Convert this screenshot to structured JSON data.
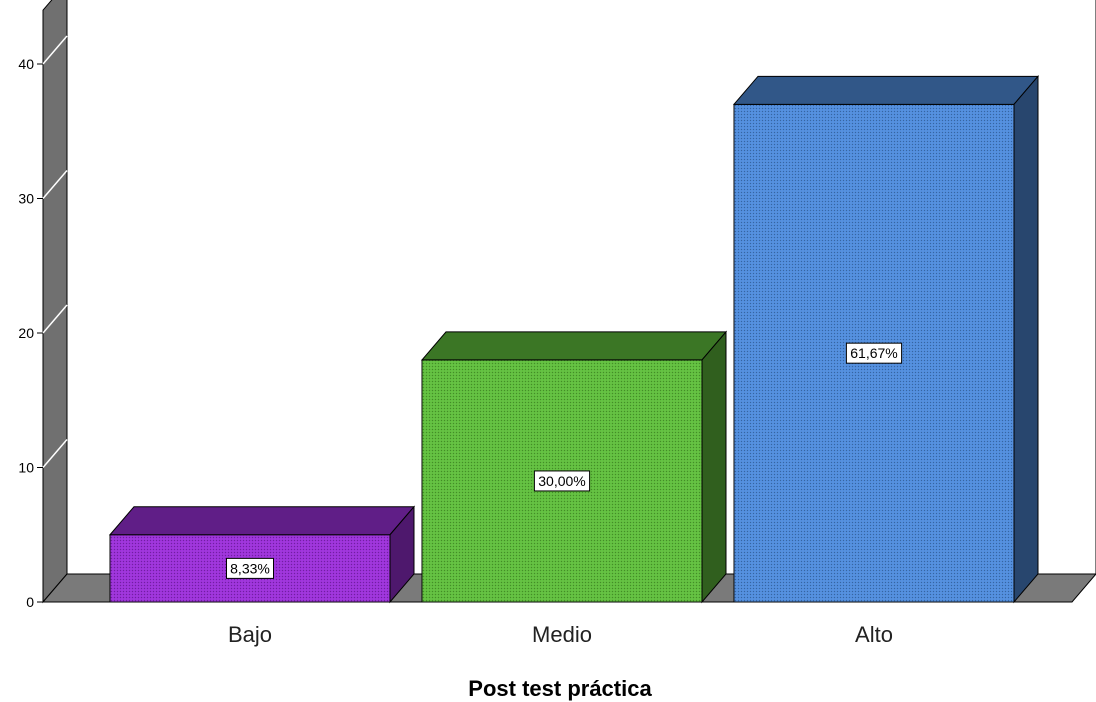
{
  "chart_data": {
    "type": "bar",
    "categories": [
      "Bajo",
      "Medio",
      "Alto"
    ],
    "values": [
      5,
      18,
      37
    ],
    "data_labels": [
      "8,33%",
      "30,00%",
      "61,67%"
    ],
    "colors": [
      "#9B30D9",
      "#5FBE3C",
      "#4F8CDC"
    ],
    "title": "",
    "xlabel": "Post test práctica",
    "ylabel": "",
    "ylim": [
      0,
      44
    ],
    "yticks": [
      0,
      10,
      20,
      30,
      40
    ],
    "grid": false,
    "style": "3d"
  }
}
